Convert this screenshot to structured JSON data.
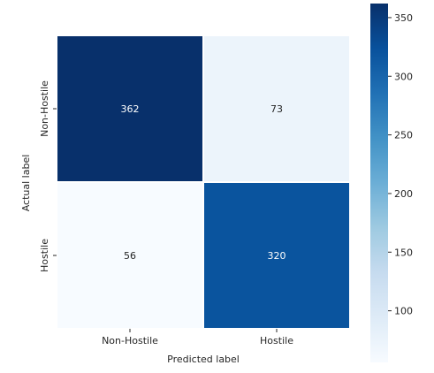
{
  "chart_data": {
    "type": "heatmap",
    "title": "",
    "xlabel": "Predicted label",
    "ylabel": "Actual label",
    "x_categories": [
      "Non-Hostile",
      "Hostile"
    ],
    "y_categories": [
      "Non-Hostile",
      "Hostile"
    ],
    "values": [
      [
        362,
        73
      ],
      [
        56,
        320
      ]
    ],
    "colormap": "Blues",
    "colorbar": {
      "range": [
        56,
        362
      ],
      "ticks": [
        100,
        150,
        200,
        250,
        300,
        350
      ]
    },
    "grid": false,
    "legend": "colorbar-right"
  }
}
